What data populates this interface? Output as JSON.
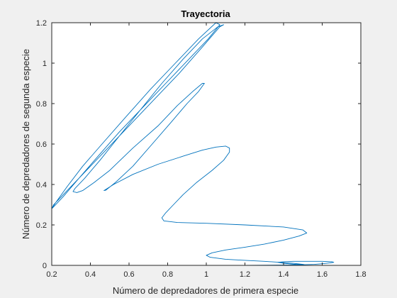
{
  "chart_data": {
    "type": "line",
    "title": "Trayectoria",
    "xlabel": "Número de depredadores de primera especie",
    "ylabel": "Número de depredadores de segunda especie",
    "xlim": [
      0.2,
      1.8
    ],
    "ylim": [
      0,
      1.2
    ],
    "xticks": [
      "0.2",
      "0.4",
      "0.6",
      "0.8",
      "1",
      "1.2",
      "1.4",
      "1.6",
      "1.8"
    ],
    "yticks": [
      "0",
      "0.2",
      "0.4",
      "0.6",
      "0.8",
      "1",
      "1.2"
    ],
    "grid": false,
    "legend": "none",
    "line_color": "#0072bd",
    "series": [
      {
        "x": [
          1.2,
          1.32,
          1.42,
          1.5,
          1.56,
          1.6,
          1.64,
          1.66,
          1.65,
          1.6,
          1.52,
          1.45,
          1.4,
          1.37,
          1.4,
          1.45,
          1.49,
          1.51,
          1.5,
          1.45,
          1.38,
          1.3,
          1.2,
          1.1,
          1.02,
          1.0,
          1.03,
          1.1,
          1.2,
          1.3,
          1.4,
          1.48,
          1.52,
          1.5,
          1.4,
          1.2,
          1.0,
          0.85,
          0.78,
          0.77,
          0.79,
          0.83,
          0.88,
          0.95,
          1.03,
          1.09,
          1.12,
          1.12,
          1.1,
          1.05,
          0.98,
          0.88,
          0.75,
          0.62,
          0.52,
          0.47,
          0.48,
          0.53,
          0.62,
          0.72,
          0.82,
          0.9,
          0.96,
          0.99,
          0.98,
          0.93,
          0.85,
          0.75,
          0.62,
          0.5,
          0.42,
          0.36,
          0.33,
          0.31,
          0.32,
          0.37,
          0.45,
          0.55,
          0.66,
          0.77,
          0.88,
          0.98,
          1.06,
          1.09,
          1.07,
          0.98,
          0.86,
          0.73,
          0.6,
          0.47,
          0.37,
          0.29,
          0.24,
          0.21,
          0.2,
          0.21,
          0.26,
          0.34,
          0.44,
          0.55,
          0.67,
          0.79,
          0.91,
          1.01,
          1.07,
          1.05,
          0.96,
          0.84,
          0.71,
          0.58,
          0.46,
          0.36,
          0.28,
          0.22,
          0.2
        ],
        "y": [
          0.0,
          0.001,
          0.002,
          0.003,
          0.005,
          0.008,
          0.012,
          0.015,
          0.018,
          0.02,
          0.02,
          0.02,
          0.018,
          0.015,
          0.01,
          0.006,
          0.004,
          0.003,
          0.005,
          0.01,
          0.015,
          0.02,
          0.025,
          0.03,
          0.04,
          0.05,
          0.062,
          0.076,
          0.09,
          0.105,
          0.125,
          0.145,
          0.16,
          0.175,
          0.19,
          0.2,
          0.208,
          0.212,
          0.22,
          0.235,
          0.26,
          0.3,
          0.35,
          0.41,
          0.47,
          0.52,
          0.56,
          0.58,
          0.59,
          0.585,
          0.57,
          0.54,
          0.5,
          0.45,
          0.4,
          0.37,
          0.372,
          0.41,
          0.49,
          0.6,
          0.71,
          0.8,
          0.86,
          0.9,
          0.9,
          0.86,
          0.79,
          0.69,
          0.58,
          0.47,
          0.41,
          0.37,
          0.36,
          0.365,
          0.38,
          0.43,
          0.52,
          0.64,
          0.77,
          0.9,
          1.02,
          1.12,
          1.18,
          1.19,
          1.18,
          1.08,
          0.95,
          0.82,
          0.69,
          0.56,
          0.46,
          0.38,
          0.33,
          0.3,
          0.28,
          0.29,
          0.34,
          0.43,
          0.54,
          0.66,
          0.78,
          0.9,
          1.02,
          1.12,
          1.19,
          1.2,
          1.12,
          1.0,
          0.87,
          0.73,
          0.6,
          0.49,
          0.39,
          0.31,
          0.28
        ]
      }
    ]
  }
}
